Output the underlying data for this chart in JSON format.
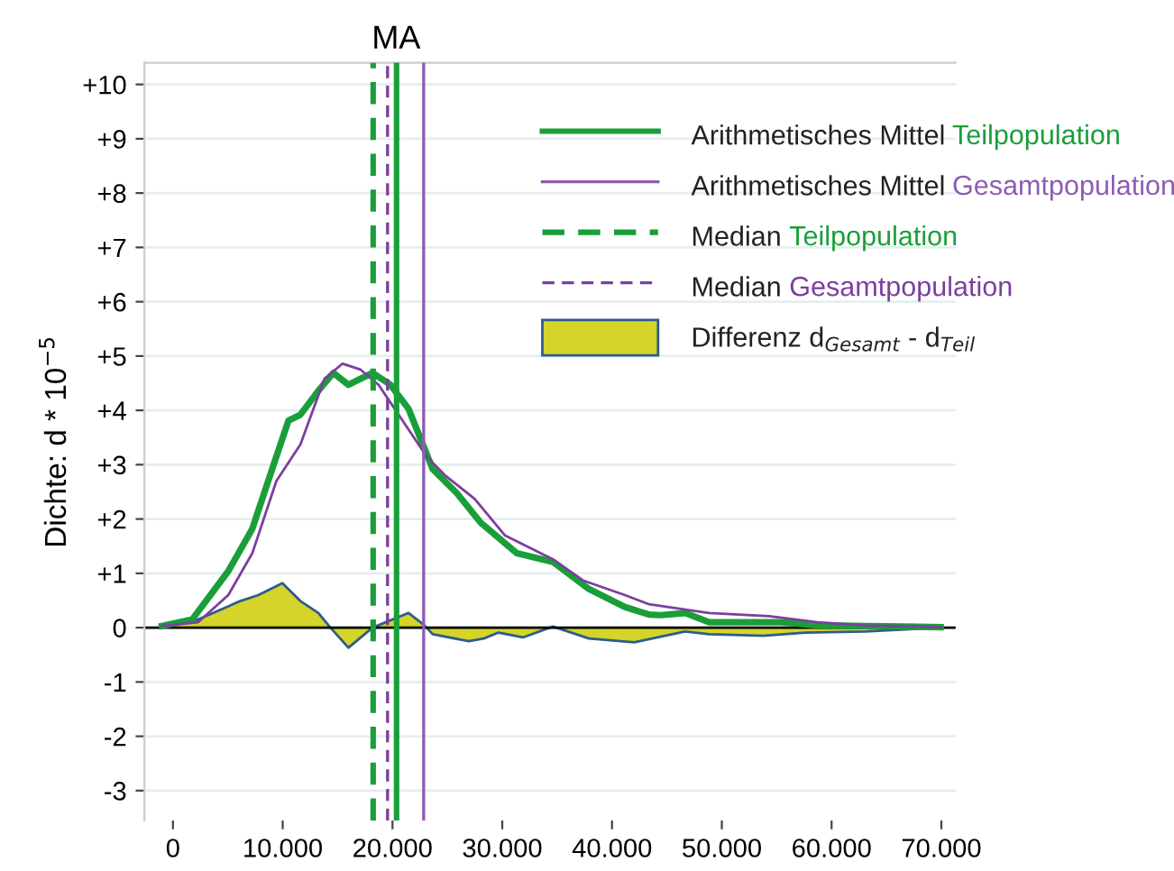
{
  "chart_data": {
    "type": "line",
    "ylabel": "Dichte: d * 10$^{−5}$",
    "series": [
      {
        "color": "#1a9e3a",
        "x": [
          -1000,
          1750,
          5040,
          7230,
          9420,
          10520,
          11610,
          13250,
          14620,
          15990,
          18180,
          19820,
          21460,
          23660,
          25850,
          28040,
          31320,
          34610,
          37900,
          41180,
          43380,
          44470,
          46660,
          48850,
          52140,
          55430,
          58710,
          69930
        ],
        "values": [
          0.03,
          0.15,
          1.04,
          1.82,
          3.15,
          3.81,
          3.92,
          4.36,
          4.69,
          4.47,
          4.69,
          4.47,
          4.03,
          2.92,
          2.48,
          1.93,
          1.37,
          1.21,
          0.71,
          0.38,
          0.24,
          0.23,
          0.27,
          0.1,
          0.1,
          0.1,
          0.04,
          0.01
        ]
      },
      {
        "color": "#7b3f9e",
        "x": [
          -1000,
          2300,
          5040,
          7230,
          9420,
          11610,
          13800,
          15450,
          17090,
          18730,
          20920,
          23110,
          24750,
          27490,
          30230,
          34610,
          37350,
          41180,
          43380,
          48850,
          54330,
          58710,
          63100,
          69930
        ],
        "values": [
          0.03,
          0.1,
          0.6,
          1.37,
          2.7,
          3.37,
          4.58,
          4.86,
          4.75,
          4.47,
          3.81,
          3.15,
          2.81,
          2.37,
          1.7,
          1.26,
          0.87,
          0.6,
          0.43,
          0.27,
          0.21,
          0.1,
          0.04,
          0.01
        ]
      },
      {
        "name": "Differenz d$_{Gesamt}$ - d$_{Teil}$",
        "color": "#d4d42a",
        "type": "area",
        "x": [
          -1000,
          2300,
          6130,
          7780,
          9970,
          11610,
          13250,
          14350,
          15990,
          18180,
          21460,
          22560,
          23110,
          23660,
          26950,
          28320,
          29660,
          31880,
          34610,
          37900,
          42020,
          46660,
          48850,
          53780,
          57610,
          63100,
          69930
        ],
        "values": [
          0,
          0.15,
          0.49,
          0.6,
          0.82,
          0.49,
          0.27,
          0,
          -0.37,
          0,
          0.27,
          0.1,
          0,
          -0.12,
          -0.25,
          -0.2,
          -0.09,
          -0.18,
          0.02,
          -0.2,
          -0.27,
          -0.07,
          -0.12,
          -0.15,
          -0.09,
          -0.07,
          0
        ]
      }
    ],
    "ref_lines": [
      {
        "axis": "y",
        "value": 0,
        "color": "#000000",
        "line_style": "solid"
      },
      {
        "axis": "x",
        "value": 20370,
        "label": "Arithmetisches Mittel Teilpopulation",
        "color": "#1a9e3a",
        "line_style": "solid"
      },
      {
        "axis": "x",
        "value": 22840,
        "label": "Arithmetisches Mittel Gesamtpopulation",
        "color": "#8e5bb5",
        "line_style": "solid"
      },
      {
        "axis": "x",
        "value": 18240,
        "label": "Median Teilpopulation",
        "color": "#1a9e3a",
        "line_style": "dashed"
      },
      {
        "axis": "x",
        "value": 19550,
        "label": "Median Gesamtpopulation",
        "color": "#7b3f9e",
        "line_style": "dashed"
      }
    ],
    "annotations": [
      "M",
      "A"
    ],
    "xlim": [
      -2600,
      71300
    ],
    "ylim": [
      -3.55,
      10.4
    ],
    "xticks": [
      0,
      {
        "value": 10000,
        "label": "10.000"
      },
      {
        "value": 20000,
        "label": "20.000"
      },
      {
        "value": 30000,
        "label": "30.000"
      },
      {
        "value": 40000,
        "label": "40.000"
      },
      {
        "value": 50000,
        "label": "50.000"
      },
      {
        "value": 60000,
        "label": "60.000"
      },
      {
        "value": 70000,
        "label": "70.000"
      }
    ],
    "yticks": [
      {
        "value": 10,
        "label": "+10"
      },
      {
        "value": 9,
        "label": "+9"
      },
      {
        "value": 8,
        "label": "+8"
      },
      {
        "value": 7,
        "label": "+7"
      },
      {
        "value": 6,
        "label": "+6"
      },
      {
        "value": 5,
        "label": "+5"
      },
      {
        "value": 4,
        "label": "+4"
      },
      {
        "value": 3,
        "label": "+3"
      },
      {
        "value": 2,
        "label": "+2"
      },
      {
        "value": 1,
        "label": "+1"
      },
      0,
      {
        "value": -1,
        "label": "-1"
      },
      {
        "value": -2,
        "label": "-2"
      },
      {
        "value": -3,
        "label": "-3"
      }
    ],
    "grid": "y",
    "legend": "top right"
  }
}
